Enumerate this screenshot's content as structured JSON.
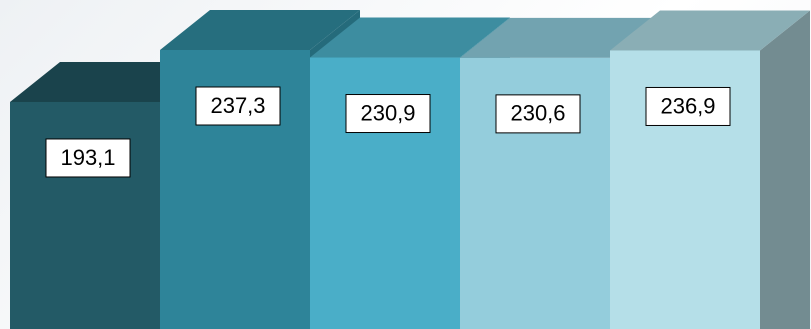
{
  "chart_data": {
    "type": "bar",
    "categories": [
      null,
      null,
      null,
      null,
      null
    ],
    "values": [
      193.1,
      237.3,
      230.9,
      230.6,
      236.9
    ],
    "value_labels": [
      "193,1",
      "237,3",
      "230,9",
      "230,6",
      "236,9"
    ],
    "colors": [
      {
        "front": "#235a66",
        "top": "#1a434c",
        "side": "#1d4b55"
      },
      {
        "front": "#2e8499",
        "top": "#266e7e",
        "side": "#256b7b"
      },
      {
        "front": "#4aaec8",
        "top": "#3d8da0",
        "side": "#3b8ca0"
      },
      {
        "front": "#94cddc",
        "top": "#72a3b0",
        "side": "#78a7b3"
      },
      {
        "front": "#b5dfe8",
        "top": "#8aaeb5",
        "side": "#738c91"
      }
    ]
  }
}
